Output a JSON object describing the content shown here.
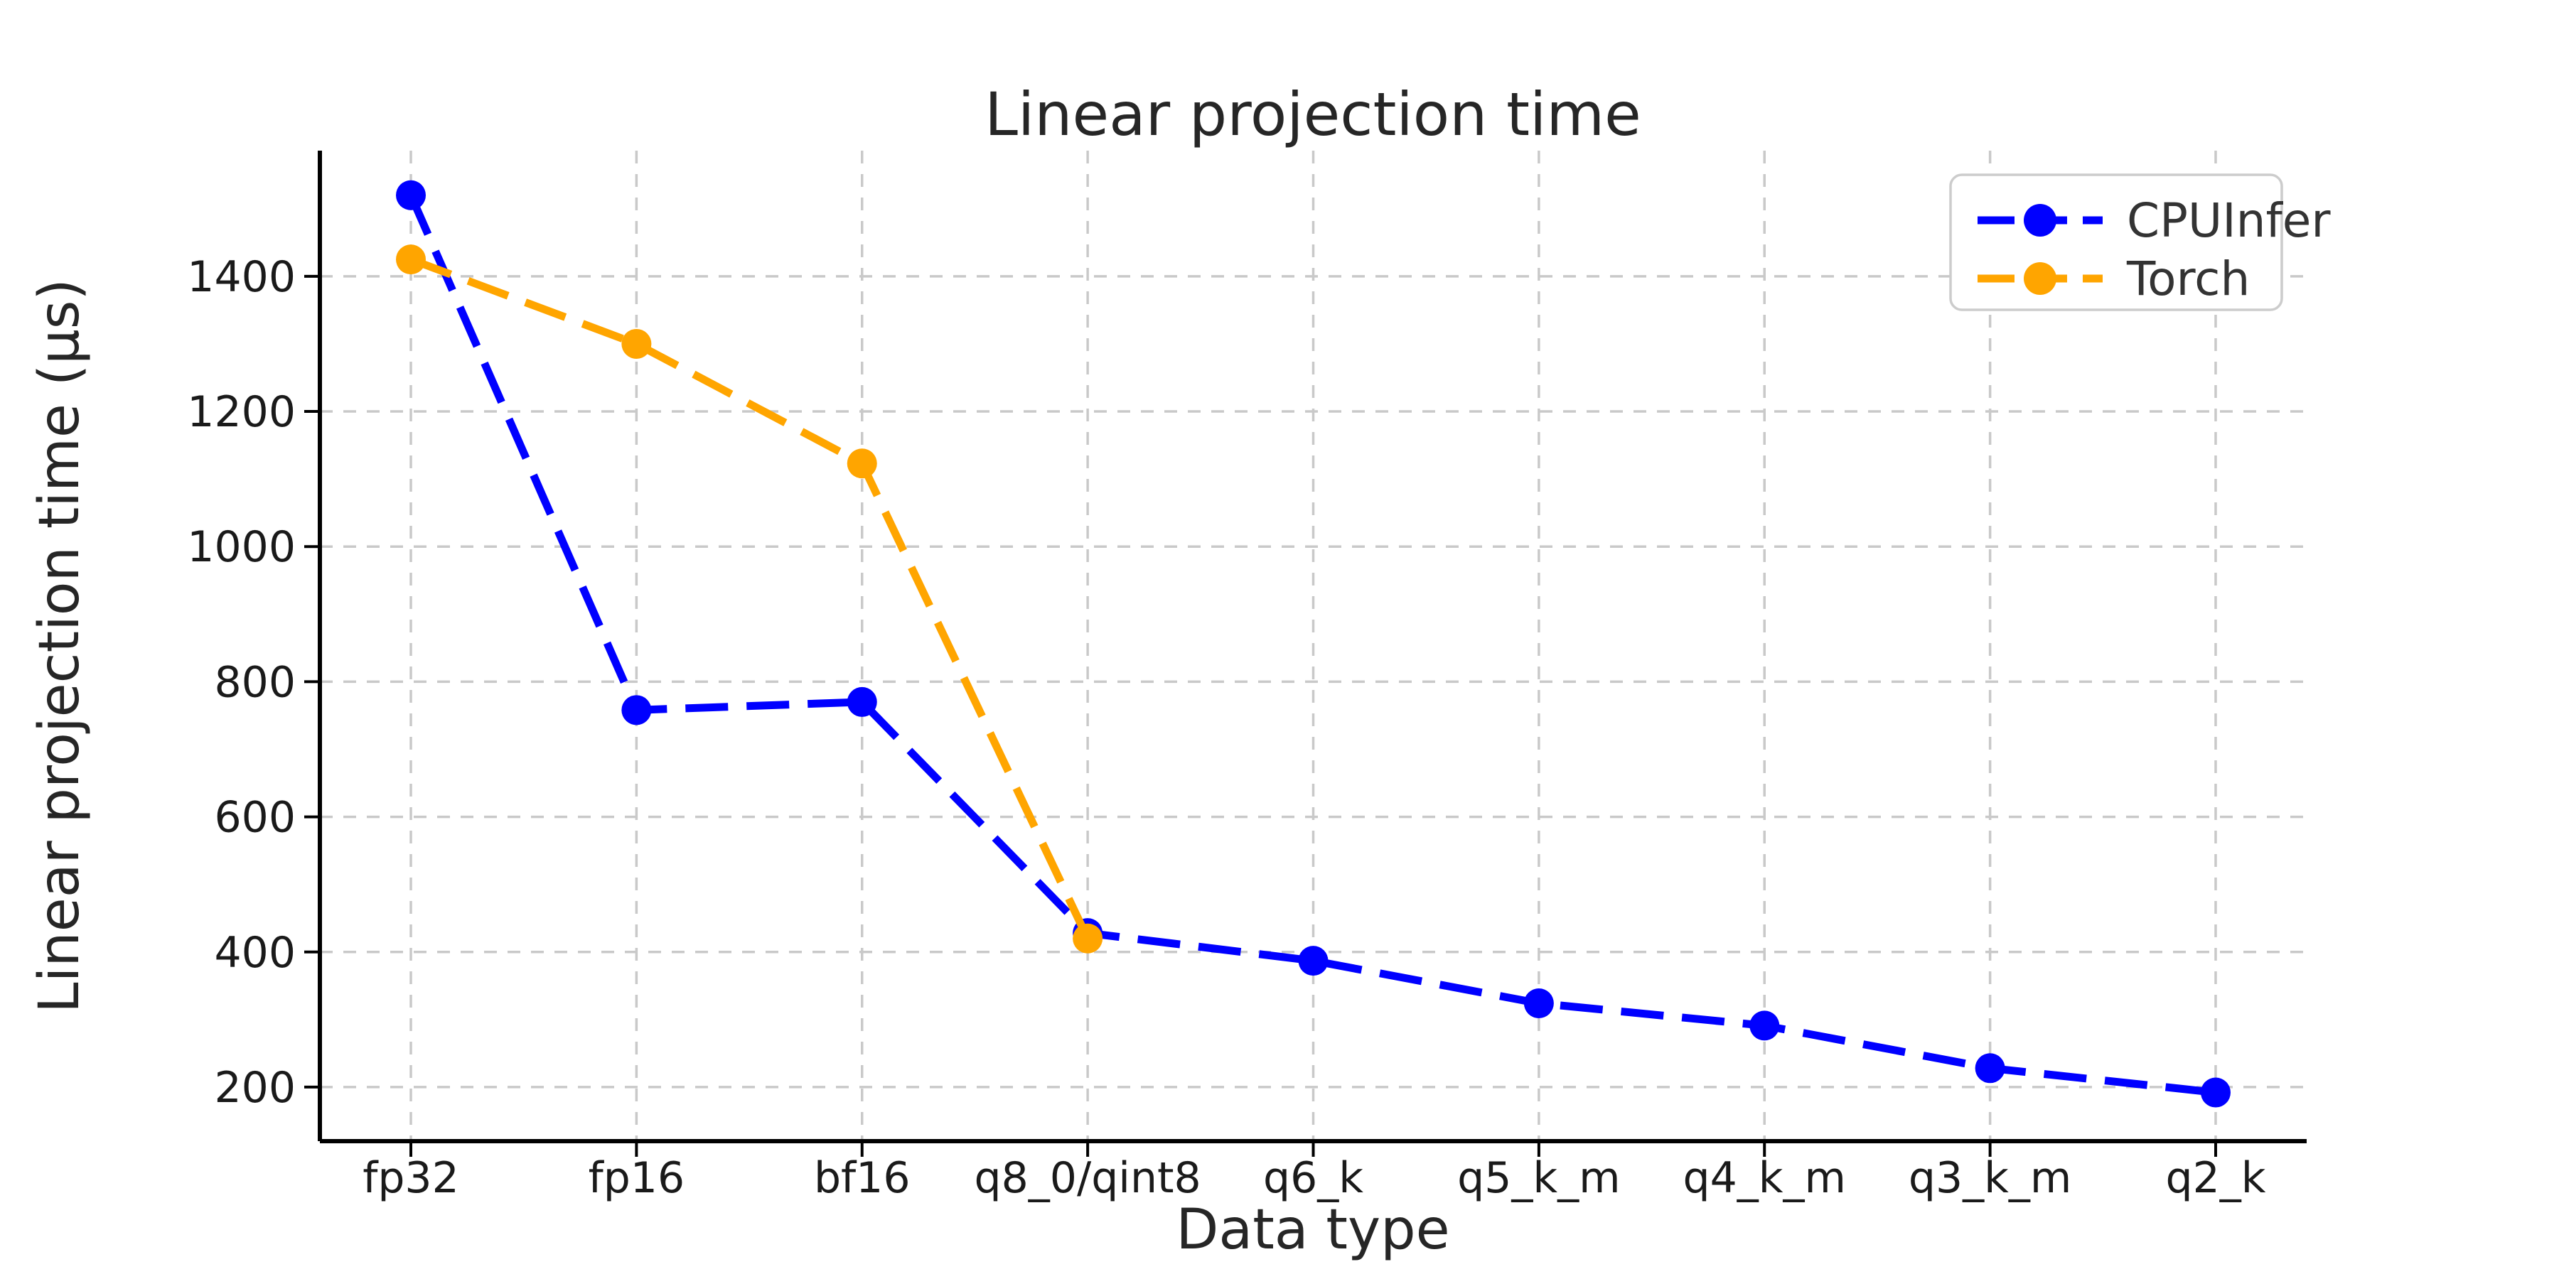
{
  "chart_data": {
    "type": "line",
    "title": "Linear projection time",
    "xlabel": "Data type",
    "ylabel": "Linear projection time (μs)",
    "categories": [
      "fp32",
      "fp16",
      "bf16",
      "q8_0/qint8",
      "q6_k",
      "q5_k_m",
      "q4_k_m",
      "q3_k_m",
      "q2_k"
    ],
    "series": [
      {
        "name": "CPUInfer",
        "color": "#0000ff",
        "values": [
          1520,
          758,
          770,
          428,
          387,
          324,
          291,
          228,
          192
        ]
      },
      {
        "name": "Torch",
        "color": "#ffa500",
        "values": [
          1425,
          1300,
          1123,
          420
        ]
      }
    ],
    "yticks": [
      200,
      400,
      600,
      800,
      1000,
      1200,
      1400
    ],
    "ylim": [
      120,
      1586
    ],
    "grid": true,
    "grid_style": "dashed",
    "line_style": "dashed",
    "marker": "o",
    "legend_position": "upper right",
    "colors": {
      "text": "#262626",
      "tick_text": "#1a1a1a",
      "legend_text": "#333333",
      "grid": "#c9c9c9",
      "spine": "#000000",
      "background": "#ffffff",
      "legend_border": "#cccccc"
    }
  }
}
